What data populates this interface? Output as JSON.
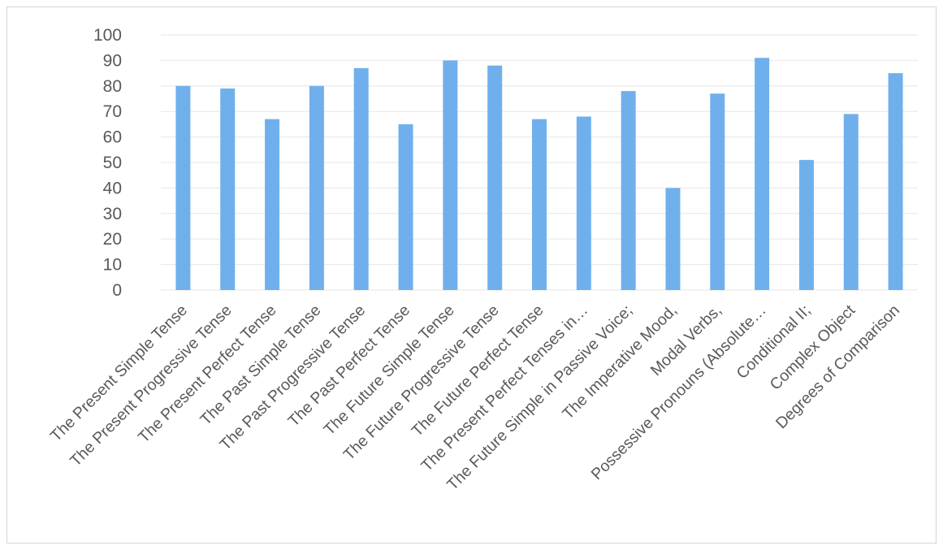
{
  "chart_data": {
    "type": "bar",
    "title": "",
    "xlabel": "",
    "ylabel": "",
    "ylim": [
      0,
      100
    ],
    "y_ticks": [
      0,
      10,
      20,
      30,
      40,
      50,
      60,
      70,
      80,
      90,
      100
    ],
    "grid": true,
    "legend": "none",
    "bar_color": "#6fb0ec",
    "grid_color": "#e6e6e6",
    "categories": [
      "The Present Simple Tense",
      "The Present Progressive Tense",
      "The Present Perfect Tense",
      "The Past Simple Tense",
      "The Past Progressive Tense",
      "The Past Perfect Tense",
      "The Future Simple Tense",
      "The Future Progressive Tense",
      "The Future Perfect Tense",
      "The Present Perfect Tenses in…",
      "The Future Simple in Passive Voice;",
      "The Imperative Mood,",
      "Modal Verbs,",
      "Possessive Pronouns (Absolute…",
      "Conditional II;",
      "Complex Object",
      "Degrees of Comparison"
    ],
    "values": [
      80,
      79,
      67,
      80,
      87,
      65,
      90,
      88,
      67,
      68,
      78,
      40,
      77,
      91,
      51,
      69,
      85
    ]
  }
}
